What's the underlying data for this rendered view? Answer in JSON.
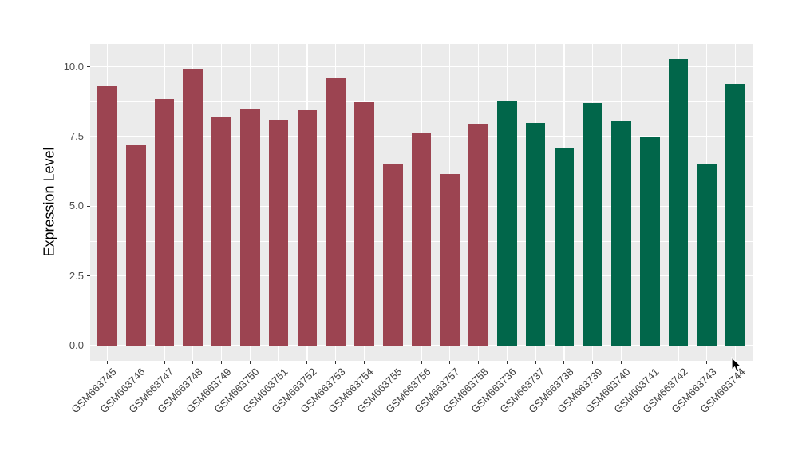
{
  "chart_data": {
    "type": "bar",
    "title": "",
    "xlabel": "",
    "ylabel": "Expression Level",
    "ylim": [
      0,
      10.8
    ],
    "yticks": [
      0.0,
      2.5,
      5.0,
      7.5,
      10.0
    ],
    "ytick_labels": [
      "0.0",
      "2.5",
      "5.0",
      "7.5",
      "10.0"
    ],
    "yticks_minor": [
      1.25,
      3.75,
      6.25,
      8.75
    ],
    "grid": true,
    "legend_position": "none",
    "categories": [
      "GSM663745",
      "GSM663746",
      "GSM663747",
      "GSM663748",
      "GSM663749",
      "GSM663750",
      "GSM663751",
      "GSM663752",
      "GSM663753",
      "GSM663754",
      "GSM663755",
      "GSM663756",
      "GSM663757",
      "GSM663758",
      "GSM663736",
      "GSM663737",
      "GSM663738",
      "GSM663739",
      "GSM663740",
      "GSM663741",
      "GSM663742",
      "GSM663743",
      "GSM663744"
    ],
    "values": [
      9.32,
      7.2,
      8.85,
      9.94,
      8.2,
      8.5,
      8.11,
      8.46,
      9.6,
      8.74,
      6.51,
      7.65,
      6.17,
      7.95,
      8.76,
      8.0,
      7.11,
      8.7,
      8.08,
      7.48,
      10.27,
      6.52,
      9.39
    ],
    "bar_groups": [
      "g1",
      "g1",
      "g1",
      "g1",
      "g1",
      "g1",
      "g1",
      "g1",
      "g1",
      "g1",
      "g1",
      "g1",
      "g1",
      "g1",
      "g2",
      "g2",
      "g2",
      "g2",
      "g2",
      "g2",
      "g2",
      "g2",
      "g2"
    ],
    "group_colors": {
      "g1": "#9C4451",
      "g2": "#01664A"
    }
  },
  "style_colors": {
    "panel_background": "#EBEBEB",
    "gridline": "#FFFFFF",
    "tick_mark": "#333333",
    "axis_text": "#4D4D4D",
    "axis_title": "#000000",
    "page_background": "#FFFFFF"
  }
}
